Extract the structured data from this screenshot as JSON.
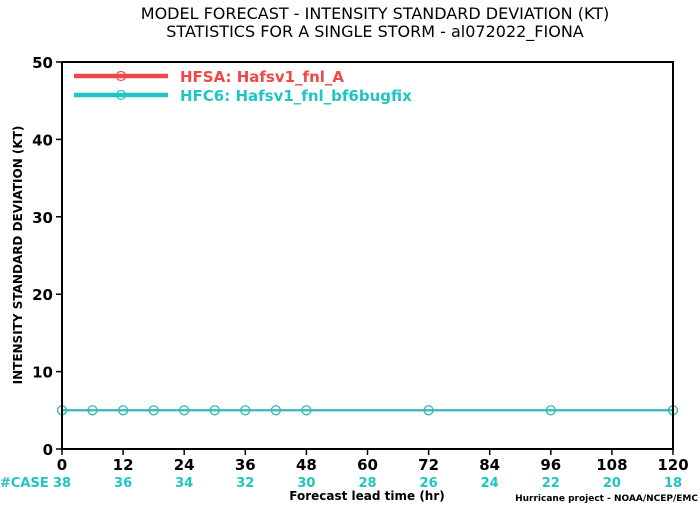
{
  "title": {
    "line1": "MODEL FORECAST - INTENSITY STANDARD DEVIATION (KT)",
    "line2": "STATISTICS FOR A SINGLE STORM - al072022_FIONA"
  },
  "credit": "Hurricane project - NOAA/NCEP/EMC",
  "colors": {
    "hfsa": "#f04848",
    "hfc6": "#20c4c4",
    "case_text": "#20c4c4",
    "axis": "#000000"
  },
  "chart_data": {
    "type": "line",
    "xlabel": "Forecast lead time (hr)",
    "ylabel": "INTENSITY STANDARD DEVIATION (KT)",
    "xlim": [
      0,
      120
    ],
    "ylim": [
      0,
      50
    ],
    "x_ticks": [
      0,
      12,
      24,
      36,
      48,
      60,
      72,
      84,
      96,
      108,
      120
    ],
    "y_ticks": [
      0,
      10,
      20,
      30,
      40,
      50
    ],
    "x_tick_labels": [
      "0",
      "12",
      "24",
      "36",
      "48",
      "60",
      "72",
      "84",
      "96",
      "108",
      "120"
    ],
    "y_tick_labels": [
      "0",
      "10",
      "20",
      "30",
      "40",
      "50"
    ],
    "grid": false,
    "legend_position": "top-left",
    "case_label": "#CASE",
    "case_x": [
      0,
      12,
      24,
      36,
      48,
      60,
      72,
      84,
      96,
      108,
      120
    ],
    "case_counts": [
      "38",
      "36",
      "34",
      "32",
      "30",
      "28",
      "26",
      "24",
      "22",
      "20",
      "18"
    ],
    "series": [
      {
        "name": "HFSA: Hafsv1_fnl_A",
        "color": "#f04848",
        "x": [
          0,
          6,
          12,
          18,
          24,
          30,
          36,
          42,
          48,
          72,
          96,
          120
        ],
        "y": [
          5,
          5,
          5,
          5,
          5,
          5,
          5,
          5,
          5,
          5,
          5,
          5
        ]
      },
      {
        "name": "HFC6: Hafsv1_fnl_bf6bugfix",
        "color": "#20c4c4",
        "x": [
          0,
          6,
          12,
          18,
          24,
          30,
          36,
          42,
          48,
          72,
          96,
          120
        ],
        "y": [
          5,
          5,
          5,
          5,
          5,
          5,
          5,
          5,
          5,
          5,
          5,
          5
        ]
      }
    ]
  }
}
